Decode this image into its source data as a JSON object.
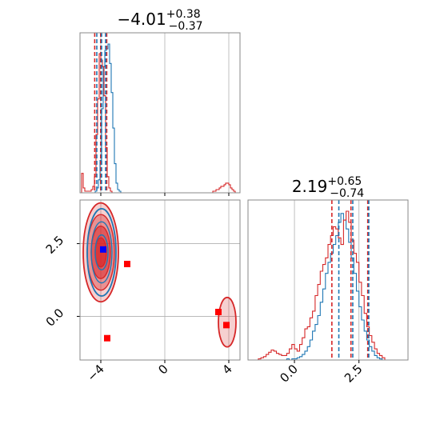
{
  "chart_data": [
    {
      "type": "histogram",
      "panel": "marginal-x",
      "title": {
        "main": "−4.01",
        "sup": "+0.38",
        "sub": "−0.37"
      },
      "xlim": [
        -5.3,
        4.7
      ],
      "x_ticks": [
        -4,
        0,
        4
      ],
      "x_tick_labels": [
        "−4",
        "0",
        "4"
      ],
      "grid": true,
      "quantile_lines": [
        {
          "color": "#d62728",
          "values": [
            -4.38,
            -4.01,
            -3.63
          ]
        },
        {
          "color": "#1f77b4",
          "values": [
            -4.25,
            -3.95,
            -3.7
          ]
        }
      ],
      "series": [
        {
          "color": "#1f77b4",
          "bins": {
            "start": -4.45,
            "width": 0.1,
            "counts": [
              0,
              1,
              3,
              8,
              20,
              52,
              78,
              88,
              89,
              92,
              80,
              62,
              40,
              18,
              6,
              2,
              1,
              0
            ]
          }
        },
        {
          "color": "#d62728",
          "bins": {
            "start": -5.2,
            "width": 0.1,
            "counts": [
              12,
              3,
              1,
              1,
              1,
              1,
              2,
              4,
              10,
              36,
              58,
              86,
              82,
              78,
              60,
              28,
              10,
              3,
              1,
              0
            ]
          },
          "outlier_bins": {
            "start": 3.0,
            "width": 0.1,
            "counts": [
              1,
              1,
              2,
              2,
              3,
              4,
              4,
              5,
              6,
              6,
              5,
              3,
              2,
              1
            ]
          }
        }
      ]
    },
    {
      "type": "contour-scatter",
      "panel": "joint",
      "xlim": [
        -5.3,
        4.7
      ],
      "ylim": [
        -1.5,
        4.0
      ],
      "x_ticks": [
        -4,
        0,
        4
      ],
      "x_tick_labels": [
        "−4",
        "0",
        "4"
      ],
      "y_ticks": [
        0.0,
        2.5
      ],
      "y_tick_labels": [
        "0.0",
        "2.5"
      ],
      "grid": true,
      "blobs": [
        {
          "color": "#d62728",
          "cx": -4.0,
          "cy": 2.2,
          "rx": [
            1.1,
            0.85,
            0.6,
            0.35
          ],
          "ry": [
            1.7,
            1.3,
            0.9,
            0.5
          ]
        },
        {
          "color": "#1f77b4",
          "cx": -3.95,
          "cy": 2.2,
          "rx": [
            0.9,
            0.65,
            0.4
          ],
          "ry": [
            1.5,
            1.05,
            0.6
          ]
        },
        {
          "color": "#d62728",
          "cx": 3.9,
          "cy": -0.2,
          "rx": [
            0.55
          ],
          "ry": [
            0.85
          ]
        }
      ],
      "markers": [
        {
          "color": "#ff0000",
          "x": -2.35,
          "y": 1.8
        },
        {
          "color": "#ff0000",
          "x": -3.6,
          "y": -0.75
        },
        {
          "color": "#ff0000",
          "x": 3.35,
          "y": 0.15
        },
        {
          "color": "#ff0000",
          "x": 3.85,
          "y": -0.3
        },
        {
          "color": "#0000ff",
          "x": -3.85,
          "y": 2.3
        }
      ]
    },
    {
      "type": "histogram",
      "panel": "marginal-y",
      "title": {
        "main": "2.19",
        "sup": "+0.65",
        "sub": "−0.74"
      },
      "xlim": [
        -1.8,
        4.4
      ],
      "x_ticks": [
        0.0,
        2.5
      ],
      "x_tick_labels": [
        "0.0",
        "2.5"
      ],
      "grid": true,
      "quantile_lines": [
        {
          "color": "#d62728",
          "values": [
            1.45,
            2.19,
            2.84
          ]
        },
        {
          "color": "#1f77b4",
          "values": [
            1.72,
            2.26,
            2.88
          ]
        }
      ],
      "series": [
        {
          "color": "#1f77b4",
          "bins": {
            "start": -0.4,
            "width": 0.1,
            "counts": [
              0,
              1,
              0,
              1,
              1,
              2,
              3,
              5,
              8,
              12,
              18,
              26,
              32,
              40,
              52,
              64,
              78,
              88,
              96,
              104,
              112,
              124,
              132,
              126,
              118,
              106,
              92,
              78,
              62,
              48,
              36,
              26,
              18,
              12,
              8,
              4,
              2,
              1,
              0
            ]
          }
        },
        {
          "color": "#d62728",
          "bins": {
            "start": -1.5,
            "width": 0.1,
            "counts": [
              0,
              1,
              2,
              3,
              5,
              7,
              9,
              8,
              6,
              5,
              4,
              4,
              6,
              10,
              14,
              10,
              8,
              14,
              20,
              28,
              30,
              38,
              44,
              58,
              68,
              80,
              86,
              92,
              104,
              112,
              120,
              118,
              110,
              104,
              126,
              134,
              124,
              108,
              96,
              88,
              70,
              58,
              42,
              30,
              22,
              16,
              10,
              6,
              4,
              2
            ]
          }
        }
      ]
    }
  ]
}
